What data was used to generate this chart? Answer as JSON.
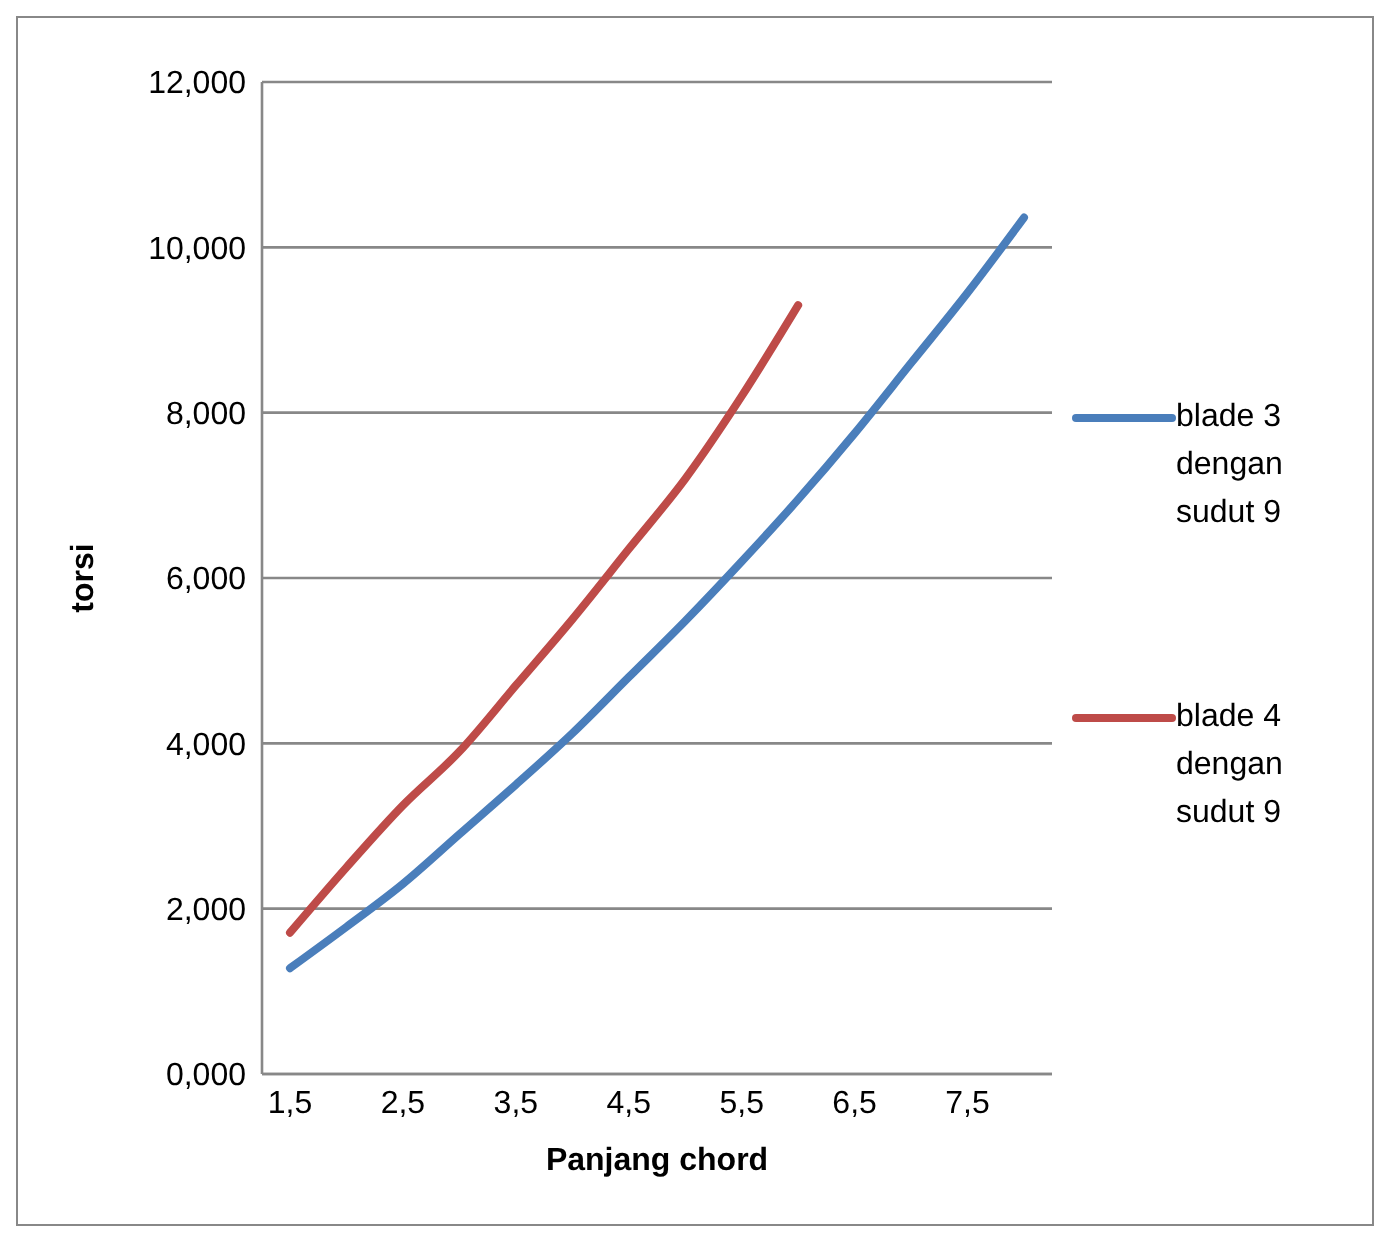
{
  "chart_data": {
    "type": "line",
    "xlabel": "Panjang chord",
    "ylabel": "torsi",
    "categories": [
      "1,5",
      null,
      "2,5",
      null,
      "3,5",
      null,
      "4,5",
      null,
      "5,5",
      null,
      "6,5",
      null,
      "7,5",
      null
    ],
    "series": [
      {
        "name": "blade 3 dengan sudut 9",
        "color": "#4a7ebb",
        "values": [
          1.28,
          1.78,
          2.3,
          2.9,
          3.5,
          4.12,
          4.8,
          5.48,
          6.2,
          6.95,
          7.75,
          8.6,
          9.45,
          10.36
        ]
      },
      {
        "name": "blade 4 dengan sudut 9",
        "color": "#be4b48",
        "values": [
          1.71,
          2.5,
          3.25,
          3.9,
          4.7,
          5.5,
          6.35,
          7.2,
          8.2,
          9.3,
          null,
          null,
          null,
          null
        ]
      }
    ],
    "ylim": [
      0,
      12
    ],
    "yticks": [
      {
        "value": 0,
        "label": "0,000"
      },
      {
        "value": 2,
        "label": "2,000"
      },
      {
        "value": 4,
        "label": "4,000"
      },
      {
        "value": 6,
        "label": "6,000"
      },
      {
        "value": 8,
        "label": "8,000"
      },
      {
        "value": 10,
        "label": "10,000"
      },
      {
        "value": 12,
        "label": "12,000"
      }
    ],
    "grid": "y",
    "legend": "right",
    "marker": "none",
    "line_style": "solid"
  }
}
